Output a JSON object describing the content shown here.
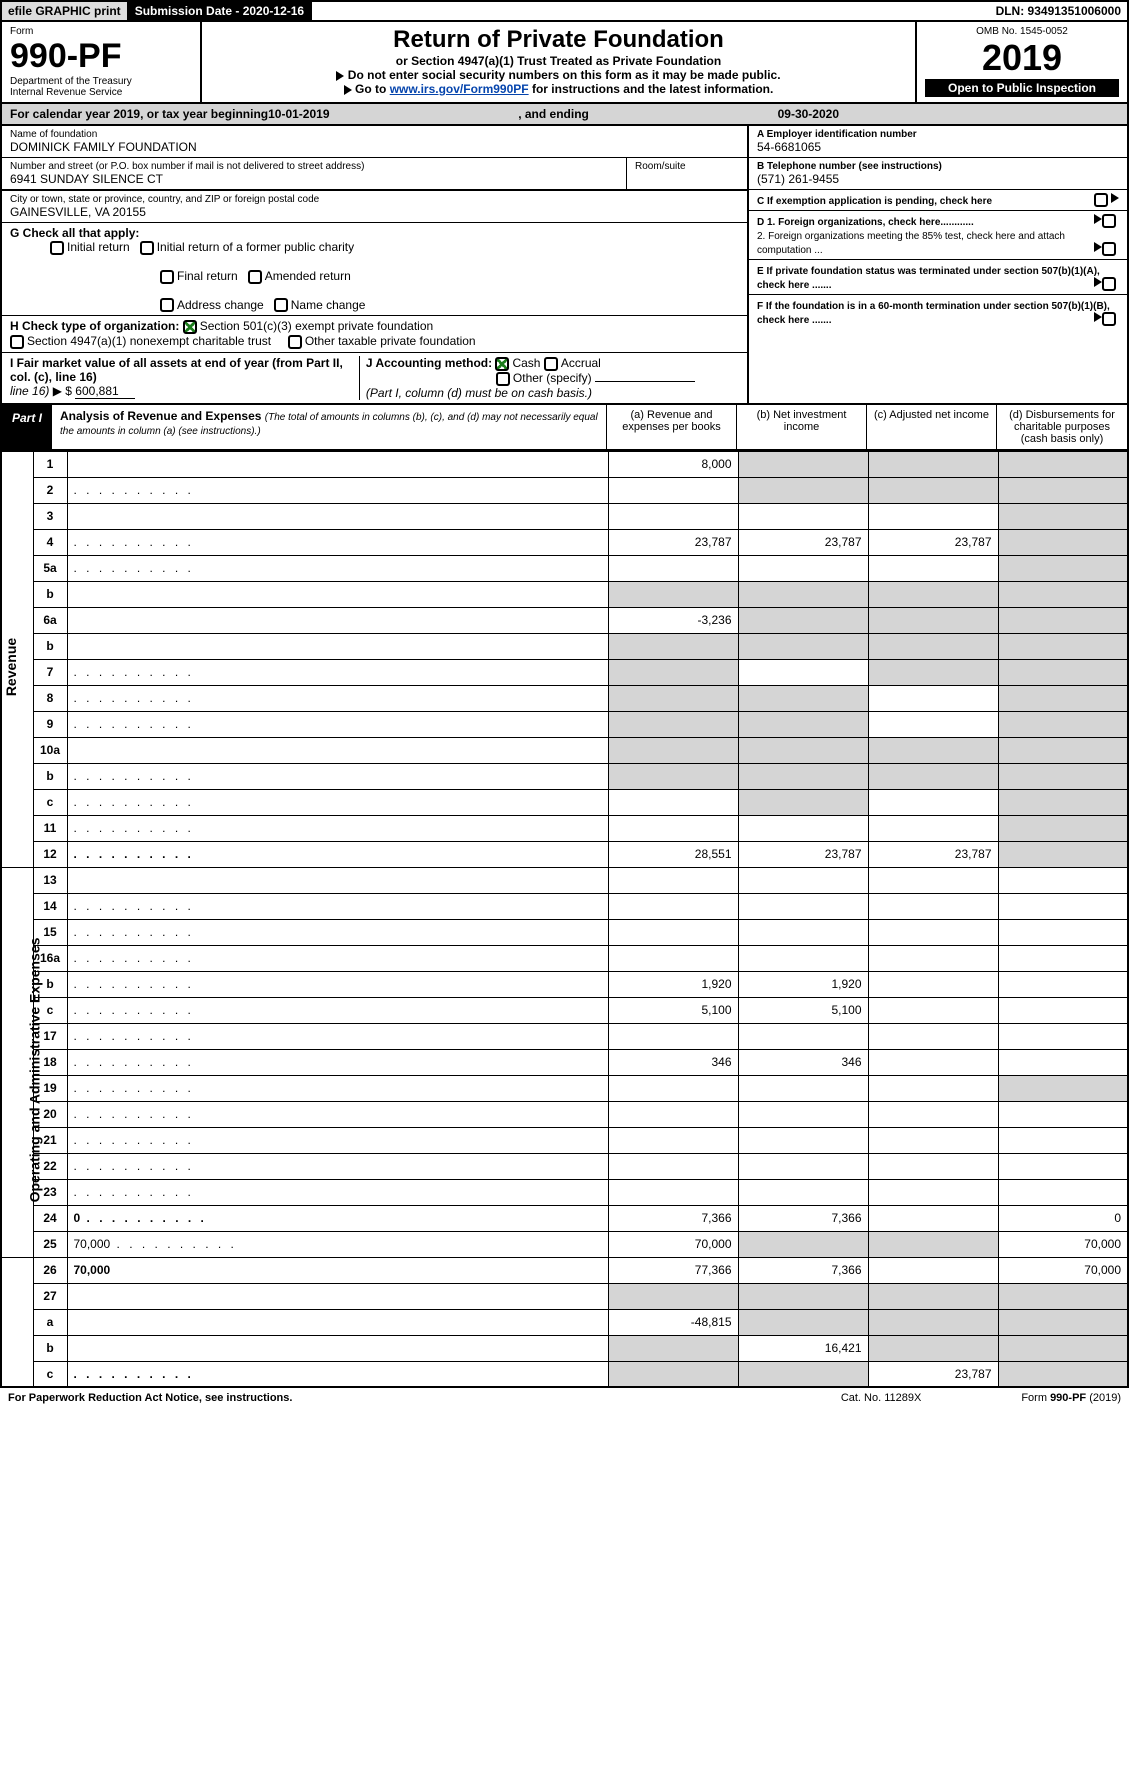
{
  "topbar": {
    "efile": "efile GRAPHIC print",
    "submission_label": "Submission Date - 2020-12-16",
    "dln": "DLN: 93491351006000"
  },
  "head": {
    "form_label": "Form",
    "form_no": "990-PF",
    "dept": "Department of the Treasury",
    "irs": "Internal Revenue Service",
    "title": "Return of Private Foundation",
    "subtitle": "or Section 4947(a)(1) Trust Treated as Private Foundation",
    "warn1": "Do not enter social security numbers on this form as it may be made public.",
    "warn2_pre": "Go to ",
    "warn2_link": "www.irs.gov/Form990PF",
    "warn2_post": " for instructions and the latest information.",
    "omb": "OMB No. 1545-0052",
    "year": "2019",
    "open": "Open to Public Inspection"
  },
  "calendar": {
    "pre": "For calendar year 2019, or tax year beginning ",
    "begin": "10-01-2019",
    "mid": ", and ending ",
    "end": "09-30-2020"
  },
  "entity": {
    "name_label": "Name of foundation",
    "name": "DOMINICK FAMILY FOUNDATION",
    "addr_label": "Number and street (or P.O. box number if mail is not delivered to street address)",
    "addr": "6941 SUNDAY SILENCE CT",
    "room_label": "Room/suite",
    "city_label": "City or town, state or province, country, and ZIP or foreign postal code",
    "city": "GAINESVILLE, VA  20155",
    "ein_label": "A Employer identification number",
    "ein": "54-6681065",
    "tel_label": "B Telephone number (see instructions)",
    "tel": "(571) 261-9455",
    "exempt_label": "C If exemption application is pending, check here"
  },
  "checks": {
    "g_label": "G Check all that apply:",
    "initial": "Initial return",
    "initial_former": "Initial return of a former public charity",
    "final": "Final return",
    "amended": "Amended return",
    "address": "Address change",
    "name": "Name change",
    "h_label": "H Check type of organization:",
    "h_501c3": "Section 501(c)(3) exempt private foundation",
    "h_4947": "Section 4947(a)(1) nonexempt charitable trust",
    "h_other": "Other taxable private foundation",
    "i_label": "I Fair market value of all assets at end of year (from Part II, col. (c), line 16)",
    "i_dollar": "▶ $",
    "i_val": "600,881",
    "j_label": "J Accounting method:",
    "j_cash": "Cash",
    "j_accrual": "Accrual",
    "j_other": "Other (specify)",
    "j_note": "(Part I, column (d) must be on cash basis.)",
    "d1": "D 1. Foreign organizations, check here............",
    "d2": "2. Foreign organizations meeting the 85% test, check here and attach computation ...",
    "e": "E  If private foundation status was terminated under section 507(b)(1)(A), check here .......",
    "f": "F  If the foundation is in a 60-month termination under section 507(b)(1)(B), check here ......."
  },
  "partI": {
    "tag": "Part I",
    "title": "Analysis of Revenue and Expenses",
    "title_note": "(The total of amounts in columns (b), (c), and (d) may not necessarily equal the amounts in column (a) (see instructions).)",
    "col_a": "(a)   Revenue and expenses per books",
    "col_b": "(b)  Net investment income",
    "col_c": "(c)  Adjusted net income",
    "col_d": "(d)  Disbursements for charitable purposes (cash basis only)"
  },
  "rows": [
    {
      "n": "1",
      "d": "",
      "a": "8,000",
      "b": "",
      "c": "",
      "gb": true,
      "gc": true,
      "gd": true
    },
    {
      "n": "2",
      "d": "",
      "a": "",
      "b": "",
      "c": "",
      "dot": true,
      "gb": true,
      "gc": true,
      "gd": true
    },
    {
      "n": "3",
      "d": "",
      "a": "",
      "b": "",
      "c": "",
      "gd": true
    },
    {
      "n": "4",
      "d": "",
      "a": "23,787",
      "b": "23,787",
      "c": "23,787",
      "dot": true,
      "gd": true
    },
    {
      "n": "5a",
      "d": "",
      "a": "",
      "b": "",
      "c": "",
      "dot": true,
      "gd": true
    },
    {
      "n": "b",
      "d": "",
      "a": "",
      "b": "",
      "c": "",
      "ga": true,
      "gb": true,
      "gc": true,
      "gd": true
    },
    {
      "n": "6a",
      "d": "",
      "a": "-3,236",
      "b": "",
      "c": "",
      "gb": true,
      "gc": true,
      "gd": true
    },
    {
      "n": "b",
      "d": "",
      "a": "",
      "b": "",
      "c": "",
      "ga": true,
      "gb": true,
      "gc": true,
      "gd": true
    },
    {
      "n": "7",
      "d": "",
      "a": "",
      "b": "",
      "c": "",
      "dot": true,
      "ga": true,
      "gc": true,
      "gd": true
    },
    {
      "n": "8",
      "d": "",
      "a": "",
      "b": "",
      "c": "",
      "dot": true,
      "ga": true,
      "gb": true,
      "gd": true
    },
    {
      "n": "9",
      "d": "",
      "a": "",
      "b": "",
      "c": "",
      "dot": true,
      "ga": true,
      "gb": true,
      "gd": true
    },
    {
      "n": "10a",
      "d": "",
      "a": "",
      "b": "",
      "c": "",
      "ga": true,
      "gb": true,
      "gc": true,
      "gd": true
    },
    {
      "n": "b",
      "d": "",
      "a": "",
      "b": "",
      "c": "",
      "dot": true,
      "ga": true,
      "gb": true,
      "gc": true,
      "gd": true
    },
    {
      "n": "c",
      "d": "",
      "a": "",
      "b": "",
      "c": "",
      "dot": true,
      "gb": true,
      "gd": true
    },
    {
      "n": "11",
      "d": "",
      "a": "",
      "b": "",
      "c": "",
      "dot": true,
      "gd": true
    },
    {
      "n": "12",
      "d": "",
      "a": "28,551",
      "b": "23,787",
      "c": "23,787",
      "bold": true,
      "dot": true,
      "gd": true
    },
    {
      "n": "13",
      "d": "",
      "a": "",
      "b": "",
      "c": ""
    },
    {
      "n": "14",
      "d": "",
      "a": "",
      "b": "",
      "c": "",
      "dot": true
    },
    {
      "n": "15",
      "d": "",
      "a": "",
      "b": "",
      "c": "",
      "dot": true
    },
    {
      "n": "16a",
      "d": "",
      "a": "",
      "b": "",
      "c": "",
      "dot": true
    },
    {
      "n": "b",
      "d": "",
      "a": "1,920",
      "b": "1,920",
      "c": "",
      "dot": true
    },
    {
      "n": "c",
      "d": "",
      "a": "5,100",
      "b": "5,100",
      "c": "",
      "dot": true
    },
    {
      "n": "17",
      "d": "",
      "a": "",
      "b": "",
      "c": "",
      "dot": true
    },
    {
      "n": "18",
      "d": "",
      "a": "346",
      "b": "346",
      "c": "",
      "dot": true
    },
    {
      "n": "19",
      "d": "",
      "a": "",
      "b": "",
      "c": "",
      "dot": true,
      "gd": true
    },
    {
      "n": "20",
      "d": "",
      "a": "",
      "b": "",
      "c": "",
      "dot": true
    },
    {
      "n": "21",
      "d": "",
      "a": "",
      "b": "",
      "c": "",
      "dot": true
    },
    {
      "n": "22",
      "d": "",
      "a": "",
      "b": "",
      "c": "",
      "dot": true
    },
    {
      "n": "23",
      "d": "",
      "a": "",
      "b": "",
      "c": "",
      "dot": true
    },
    {
      "n": "24",
      "d": "0",
      "a": "7,366",
      "b": "7,366",
      "c": "",
      "bold": true,
      "dot": true
    },
    {
      "n": "25",
      "d": "70,000",
      "a": "70,000",
      "b": "",
      "c": "",
      "dot": true,
      "gb": true,
      "gc": true
    },
    {
      "n": "26",
      "d": "70,000",
      "a": "77,366",
      "b": "7,366",
      "c": "",
      "bold": true
    },
    {
      "n": "27",
      "d": "",
      "a": "",
      "b": "",
      "c": "",
      "ga": true,
      "gb": true,
      "gc": true,
      "gd": true
    },
    {
      "n": "a",
      "d": "",
      "a": "-48,815",
      "b": "",
      "c": "",
      "bold": true,
      "gb": true,
      "gc": true,
      "gd": true
    },
    {
      "n": "b",
      "d": "",
      "a": "",
      "b": "16,421",
      "c": "",
      "bold": true,
      "ga": true,
      "gc": true,
      "gd": true
    },
    {
      "n": "c",
      "d": "",
      "a": "",
      "b": "",
      "c": "23,787",
      "bold": true,
      "dot": true,
      "ga": true,
      "gb": true,
      "gd": true
    }
  ],
  "side_rev": "Revenue",
  "side_exp": "Operating and Administrative Expenses",
  "footer": {
    "left": "For Paperwork Reduction Act Notice, see instructions.",
    "mid": "Cat. No. 11289X",
    "right": "Form 990-PF (2019)"
  }
}
